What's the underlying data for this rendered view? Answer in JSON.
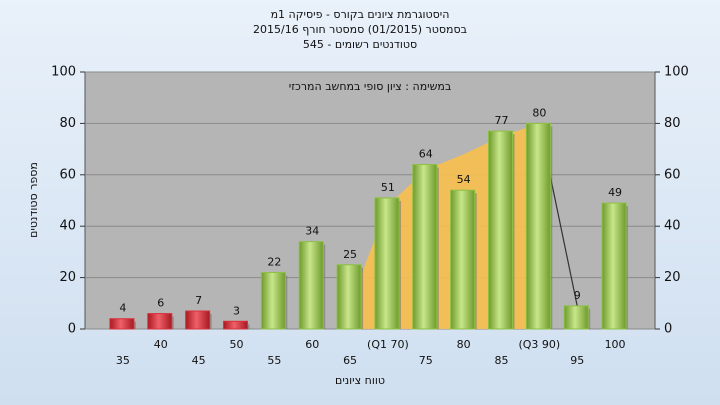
{
  "chart_data": {
    "type": "bar",
    "title": "היסטוגרמת ציונים בקורס - פיסיקה 1מ",
    "subtitle_lines": [
      "בסמסטר (01/2015) סמסטר חורף 2015/16",
      "סטודנטים רשומים - 545"
    ],
    "annotation": "במשימה : ציון סופי במחשב המרכזי",
    "y_label": "מספר סטודנטים",
    "x_label": "טווח ציונים",
    "categories": [
      "35",
      "40",
      "45",
      "50",
      "55",
      "60",
      "65",
      "(Q1 70)",
      "75",
      "80",
      "85",
      "(Q3 90)",
      "95",
      "100"
    ],
    "values": [
      4,
      6,
      7,
      3,
      22,
      34,
      25,
      51,
      64,
      54,
      77,
      80,
      9,
      49
    ],
    "colors": [
      "#d9303a",
      "#d9303a",
      "#d9303a",
      "#d9303a",
      "#8cc043",
      "#8cc043",
      "#8cc043",
      "#8cc043",
      "#8cc043",
      "#8cc043",
      "#8cc043",
      "#8cc043",
      "#8cc043",
      "#8cc043"
    ],
    "area": {
      "color": "#f7bf4c",
      "values": [
        null,
        null,
        null,
        null,
        null,
        null,
        10,
        48,
        62,
        68,
        75,
        80,
        null,
        null
      ]
    },
    "line": {
      "color": "#333333",
      "values": [
        null,
        null,
        null,
        null,
        null,
        null,
        null,
        null,
        null,
        null,
        null,
        80,
        9,
        null
      ]
    },
    "ylim": [
      0,
      100
    ],
    "yticks": [
      0,
      20,
      40,
      60,
      80,
      100
    ],
    "y2lim": [
      0,
      100
    ],
    "y2ticks": [
      0,
      20,
      40,
      60,
      80,
      100
    ],
    "grid": true
  }
}
